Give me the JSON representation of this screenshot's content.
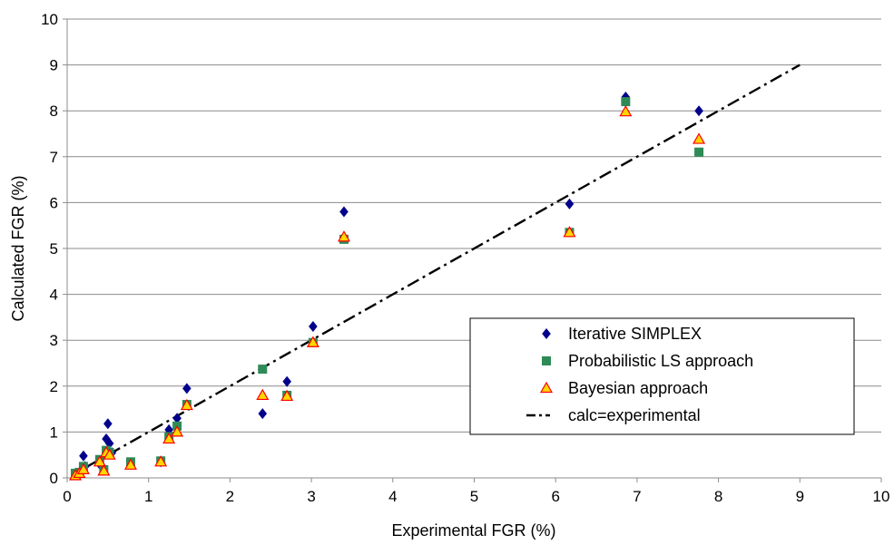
{
  "chart_data": {
    "type": "scatter",
    "title": "",
    "xlabel": "Experimental FGR (%)",
    "ylabel": "Calculated FGR (%)",
    "xlim": [
      0,
      10
    ],
    "ylim": [
      0,
      10
    ],
    "xticks": [
      "0",
      "1",
      "2",
      "3",
      "4",
      "5",
      "6",
      "7",
      "8",
      "9",
      "10"
    ],
    "yticks": [
      "0",
      "1",
      "2",
      "3",
      "4",
      "5",
      "6",
      "7",
      "8",
      "9",
      "10"
    ],
    "grid": "horizontal",
    "legend_position": "lower-right",
    "series": [
      {
        "name": "Iterative SIMPLEX",
        "marker": "diamond",
        "color": "#00008B",
        "points": [
          [
            0.1,
            0.1
          ],
          [
            0.15,
            0.08
          ],
          [
            0.2,
            0.48
          ],
          [
            0.22,
            0.25
          ],
          [
            0.4,
            0.3
          ],
          [
            0.45,
            0.2
          ],
          [
            0.48,
            0.85
          ],
          [
            0.5,
            1.18
          ],
          [
            0.52,
            0.75
          ],
          [
            0.55,
            0.55
          ],
          [
            0.78,
            0.3
          ],
          [
            1.15,
            0.35
          ],
          [
            1.25,
            1.05
          ],
          [
            1.35,
            1.3
          ],
          [
            1.47,
            1.95
          ],
          [
            2.4,
            1.4
          ],
          [
            2.7,
            2.1
          ],
          [
            3.02,
            3.3
          ],
          [
            3.4,
            5.8
          ],
          [
            6.17,
            5.97
          ],
          [
            6.86,
            8.3
          ],
          [
            7.76,
            8.0
          ]
        ]
      },
      {
        "name": "Probabilistic LS approach",
        "marker": "square",
        "color": "#2E8B57",
        "points": [
          [
            0.1,
            0.1
          ],
          [
            0.15,
            0.12
          ],
          [
            0.2,
            0.25
          ],
          [
            0.4,
            0.4
          ],
          [
            0.45,
            0.18
          ],
          [
            0.48,
            0.6
          ],
          [
            0.52,
            0.55
          ],
          [
            0.78,
            0.35
          ],
          [
            1.15,
            0.37
          ],
          [
            1.25,
            0.9
          ],
          [
            1.35,
            1.13
          ],
          [
            1.47,
            1.6
          ],
          [
            2.4,
            2.37
          ],
          [
            2.7,
            1.8
          ],
          [
            3.02,
            2.95
          ],
          [
            3.4,
            5.2
          ],
          [
            6.17,
            5.35
          ],
          [
            6.86,
            8.2
          ],
          [
            7.76,
            7.1
          ]
        ]
      },
      {
        "name": "Bayesian approach",
        "marker": "triangle",
        "color": "#FFD700",
        "edge_color": "#FF0000",
        "points": [
          [
            0.1,
            0.05
          ],
          [
            0.15,
            0.1
          ],
          [
            0.2,
            0.18
          ],
          [
            0.4,
            0.35
          ],
          [
            0.45,
            0.15
          ],
          [
            0.48,
            0.55
          ],
          [
            0.52,
            0.5
          ],
          [
            0.78,
            0.28
          ],
          [
            1.15,
            0.35
          ],
          [
            1.25,
            0.85
          ],
          [
            1.35,
            1.0
          ],
          [
            1.47,
            1.58
          ],
          [
            2.4,
            1.8
          ],
          [
            2.7,
            1.78
          ],
          [
            3.02,
            2.95
          ],
          [
            3.4,
            5.25
          ],
          [
            6.17,
            5.35
          ],
          [
            6.86,
            7.98
          ],
          [
            7.76,
            7.38
          ]
        ]
      },
      {
        "name": "calc=experimental",
        "marker": "dash-dot-line",
        "color": "#000000",
        "x": [
          0.25,
          9.0
        ],
        "y": [
          0.25,
          9.0
        ]
      }
    ]
  }
}
